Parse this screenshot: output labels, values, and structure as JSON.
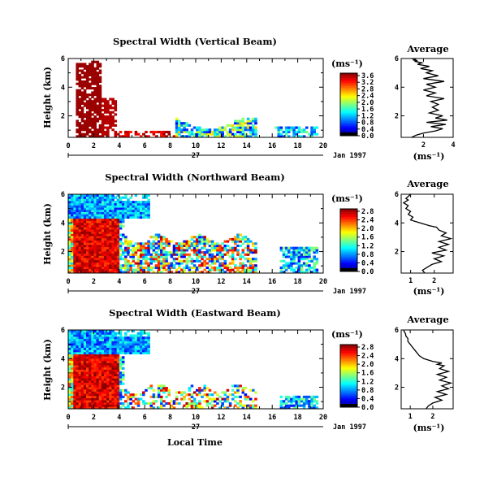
{
  "chart_data": {
    "type": "heatmap",
    "date_label": "Jan 1997",
    "day_label": "27",
    "xlabel_bottom": "Local Time",
    "x_ticks": [
      "0",
      "2",
      "4",
      "6",
      "8",
      "10",
      "12",
      "14",
      "16",
      "18",
      "20"
    ],
    "xlim": [
      0,
      20
    ],
    "panels": [
      {
        "title": "Spectral Width (Vertical Beam)",
        "ylabel": "Height (km)",
        "y_ticks": [
          "2",
          "4",
          "6"
        ],
        "ylim": [
          0.5,
          6
        ],
        "colorbar_units": "(ms⁻¹)",
        "colorbar_ticks": [
          "3.6",
          "3.2",
          "2.8",
          "2.4",
          "2.0",
          "1.6",
          "1.2",
          "0.8",
          "0.4",
          "0.0"
        ],
        "colorbar_range": [
          0,
          3.8
        ],
        "profile": {
          "title": "Average",
          "xlabel": "(ms⁻¹)",
          "x_ticks": [
            "2",
            "4"
          ],
          "xlim": [
            0.5,
            4
          ],
          "x": [
            1.2,
            1.5,
            2.0,
            2.8,
            3.3,
            2.5,
            3.5,
            2.2,
            3.6,
            2.8,
            3.3,
            2.4,
            3.0,
            2.6,
            3.0,
            2.5,
            3.4,
            2.2,
            2.8,
            2.0,
            2.8,
            2.2,
            3.4,
            2.0,
            3.0,
            2.2,
            2.6,
            1.8,
            2.4,
            1.6,
            1.9,
            1.4,
            1.6,
            1.3,
            1.5,
            1.2
          ],
          "y": [
            0.5,
            0.65,
            0.8,
            0.95,
            1.1,
            1.25,
            1.4,
            1.55,
            1.7,
            1.85,
            2.0,
            2.2,
            2.4,
            2.6,
            2.8,
            3.0,
            3.2,
            3.4,
            3.6,
            3.8,
            4.0,
            4.2,
            4.4,
            4.6,
            4.8,
            5.0,
            5.15,
            5.3,
            5.45,
            5.6,
            5.7,
            5.8,
            5.85,
            5.9,
            5.95,
            6.0
          ]
        }
      },
      {
        "title": "Spectral Width (Northward Beam)",
        "ylabel": "Height (km)",
        "y_ticks": [
          "2",
          "4",
          "6"
        ],
        "ylim": [
          0.5,
          6
        ],
        "colorbar_units": "(ms⁻¹)",
        "colorbar_ticks": [
          "2.8",
          "2.4",
          "2.0",
          "1.6",
          "1.2",
          "0.8",
          "0.4",
          "0.0"
        ],
        "colorbar_range": [
          0,
          3.0
        ],
        "profile": {
          "title": "Average",
          "xlabel": "(ms⁻¹)",
          "x_ticks": [
            "1",
            "2"
          ],
          "xlim": [
            0.6,
            2.8
          ],
          "x": [
            1.6,
            1.5,
            1.7,
            1.9,
            2.3,
            2.0,
            2.4,
            1.9,
            2.5,
            2.2,
            2.6,
            2.2,
            2.7,
            2.3,
            2.5,
            2.2,
            2.1,
            1.8,
            1.6,
            1.4,
            1.2,
            1.0,
            1.1,
            0.9,
            1.0,
            0.8,
            0.9,
            0.7,
            0.9,
            0.8,
            0.9,
            1.0
          ],
          "y": [
            0.5,
            0.7,
            0.9,
            1.1,
            1.3,
            1.5,
            1.7,
            1.9,
            2.1,
            2.3,
            2.5,
            2.7,
            2.9,
            3.1,
            3.3,
            3.5,
            3.7,
            3.8,
            3.9,
            4.0,
            4.1,
            4.2,
            4.4,
            4.6,
            4.8,
            5.0,
            5.2,
            5.4,
            5.6,
            5.7,
            5.85,
            6.0
          ]
        }
      },
      {
        "title": "Spectral Width (Eastward Beam)",
        "ylabel": "Height (km)",
        "y_ticks": [
          "2",
          "4",
          "6"
        ],
        "ylim": [
          0.5,
          6
        ],
        "colorbar_units": "(ms⁻¹)",
        "colorbar_ticks": [
          "2.8",
          "2.4",
          "2.0",
          "1.6",
          "1.2",
          "0.8",
          "0.4",
          "0.0"
        ],
        "colorbar_range": [
          0,
          3.0
        ],
        "profile": {
          "title": "Average",
          "xlabel": "(ms⁻¹)",
          "x_ticks": [
            "1",
            "2"
          ],
          "xlim": [
            0.6,
            2.9
          ],
          "x": [
            1.7,
            1.8,
            2.0,
            2.4,
            2.1,
            2.6,
            2.2,
            2.7,
            2.4,
            2.8,
            2.3,
            2.6,
            2.2,
            2.7,
            2.3,
            2.5,
            2.2,
            2.4,
            2.0,
            1.8,
            1.6,
            1.4,
            1.3,
            1.2,
            1.1,
            1.0,
            0.9,
            0.9,
            0.8,
            0.8,
            0.75,
            0.7
          ],
          "y": [
            0.5,
            0.7,
            0.9,
            1.1,
            1.3,
            1.5,
            1.7,
            1.9,
            2.1,
            2.3,
            2.5,
            2.7,
            2.9,
            3.1,
            3.3,
            3.5,
            3.6,
            3.7,
            3.8,
            3.9,
            4.0,
            4.2,
            4.4,
            4.6,
            4.8,
            5.0,
            5.2,
            5.4,
            5.6,
            5.7,
            5.85,
            6.0
          ]
        }
      }
    ]
  }
}
